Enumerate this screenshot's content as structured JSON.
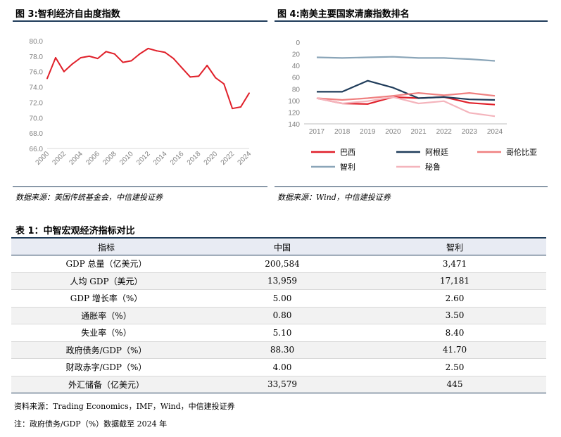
{
  "fig3": {
    "title": "图 3:智利经济自由度指数",
    "source": "数据来源：美国传统基金会，中信建投证券"
  },
  "fig4": {
    "title": "图 4:南美主要国家清廉指数排名",
    "source": "数据来源：Wind，中信建投证券"
  },
  "table": {
    "title": "表 1：中智宏观经济指标对比",
    "headers": [
      "指标",
      "中国",
      "智利"
    ],
    "rows": [
      [
        "GDP 总量（亿美元）",
        "200,584",
        "3,471"
      ],
      [
        "人均 GDP（美元）",
        "13,959",
        "17,181"
      ],
      [
        "GDP 增长率（%）",
        "5.00",
        "2.60"
      ],
      [
        "通胀率（%）",
        "0.80",
        "3.50"
      ],
      [
        "失业率（%）",
        "5.10",
        "8.40"
      ],
      [
        "政府债务/GDP（%）",
        "88.30",
        "41.70"
      ],
      [
        "财政赤字/GDP（%）",
        "4.00",
        "2.50"
      ],
      [
        "外汇储备（亿美元）",
        "33,579",
        "445"
      ]
    ],
    "source": "资料来源：Trading Economics，IMF，Wind，中信建投证券",
    "note": "注：政府债务/GDP（%）数据截至 2024 年"
  },
  "chart_data": [
    {
      "type": "line",
      "title": "图 3:智利经济自由度指数",
      "x": [
        2000,
        2001,
        2002,
        2003,
        2004,
        2005,
        2006,
        2007,
        2008,
        2009,
        2010,
        2011,
        2012,
        2013,
        2014,
        2015,
        2016,
        2017,
        2018,
        2019,
        2020,
        2021,
        2022,
        2023,
        2024
      ],
      "values": [
        75.1,
        77.8,
        76.0,
        77.0,
        77.8,
        78.0,
        77.7,
        78.6,
        78.3,
        77.2,
        77.4,
        78.3,
        79.0,
        78.7,
        78.5,
        77.7,
        76.5,
        75.3,
        75.4,
        76.8,
        75.2,
        74.4,
        71.2,
        71.4,
        73.2
      ],
      "xticks": [
        "2000",
        "2002",
        "2004",
        "2006",
        "2008",
        "2010",
        "2012",
        "2014",
        "2016",
        "2018",
        "2020",
        "2022",
        "2024"
      ],
      "yticks": [
        "80.0",
        "78.0",
        "76.0",
        "74.0",
        "72.0",
        "70.0",
        "68.0",
        "66.0"
      ],
      "ylim": [
        66,
        80
      ],
      "color": "#e0202a"
    },
    {
      "type": "line",
      "title": "图 4:南美主要国家清廉指数排名",
      "categories": [
        "2017",
        "2018",
        "2019",
        "2020",
        "2021",
        "2022",
        "2023",
        "2024"
      ],
      "yticks": [
        "0",
        "20",
        "40",
        "60",
        "80",
        "100",
        "120",
        "140"
      ],
      "ylim": [
        0,
        140
      ],
      "y_inverted": true,
      "series": [
        {
          "name": "巴西",
          "color": "#e0202a",
          "values": [
            96,
            105,
            106,
            94,
            96,
            94,
            104,
            107
          ]
        },
        {
          "name": "阿根廷",
          "color": "#1f3c5a",
          "values": [
            85,
            85,
            66,
            78,
            96,
            94,
            98,
            99
          ]
        },
        {
          "name": "哥伦比亚",
          "color": "#ef8080",
          "values": [
            96,
            99,
            96,
            92,
            87,
            91,
            87,
            92
          ]
        },
        {
          "name": "智利",
          "color": "#8aa5b8",
          "values": [
            26,
            27,
            26,
            25,
            27,
            27,
            29,
            32
          ]
        },
        {
          "name": "秘鲁",
          "color": "#f4b4bc",
          "values": [
            96,
            105,
            101,
            94,
            105,
            101,
            121,
            127
          ]
        }
      ]
    }
  ]
}
